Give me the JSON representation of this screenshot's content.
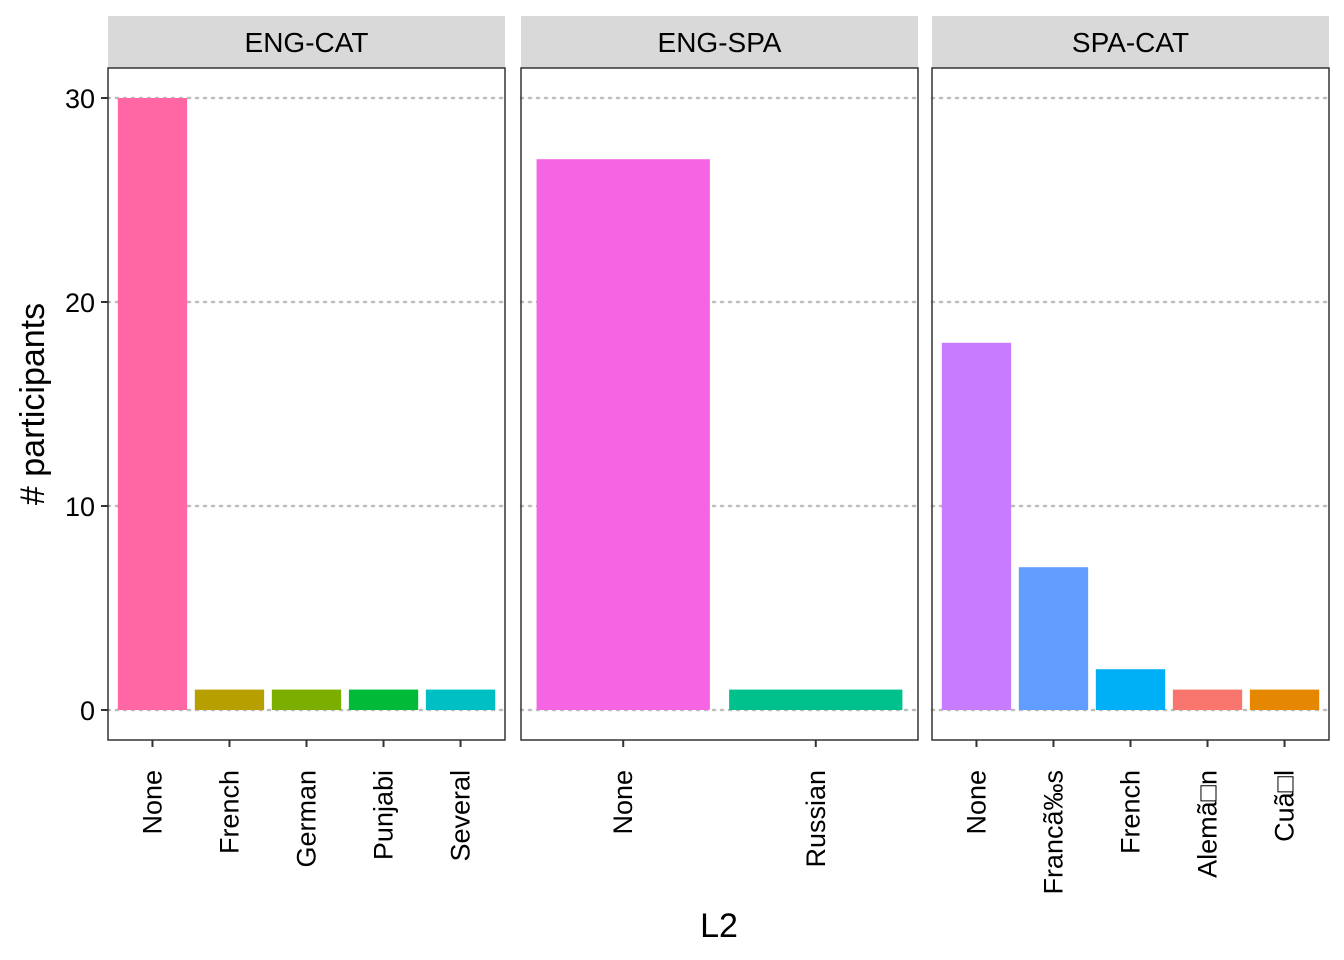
{
  "chart_data": {
    "type": "bar",
    "facet_by": "pair",
    "xlabel": "L2",
    "ylabel": "# participants",
    "ylim": [
      0,
      31.5
    ],
    "yticks": [
      0,
      10,
      20,
      30
    ],
    "grid": "horizontal dotted",
    "legend": "none",
    "panels": [
      {
        "title": "ENG-CAT",
        "categories": [
          "None",
          "French",
          "German",
          "Punjabi",
          "Several"
        ],
        "values": [
          30,
          1,
          1,
          1,
          1
        ],
        "colors": [
          "#FF67A4",
          "#B79F00",
          "#7CAE00",
          "#00BA38",
          "#00BFC4"
        ]
      },
      {
        "title": "ENG-SPA",
        "categories": [
          "None",
          "Russian"
        ],
        "values": [
          27,
          1
        ],
        "colors": [
          "#F564E3",
          "#00C08B"
        ]
      },
      {
        "title": "SPA-CAT",
        "categories": [
          "None",
          "Francã‰s",
          "French",
          "Alemã□n",
          "Cuã□l"
        ],
        "values": [
          18,
          7,
          2,
          1,
          1
        ],
        "colors": [
          "#C77CFF",
          "#619CFF",
          "#00B0F6",
          "#F8766D",
          "#E58700"
        ]
      }
    ]
  }
}
